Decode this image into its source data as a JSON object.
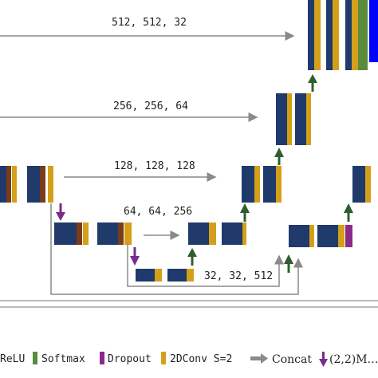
{
  "labels": {
    "level1": "512, 512, 32",
    "level2": "256, 256, 64",
    "level3": "128, 128, 128",
    "level4": "64, 64, 256",
    "level5": "32, 32, 512"
  },
  "legend": {
    "relu": "ReLU",
    "softmax": "Softmax",
    "dropout": "Dropout",
    "conv": "2DConv S=2",
    "concat": "Concat",
    "maxpool": "(2,2)M…"
  },
  "colors": {
    "conv_block": "#1f3a6b",
    "relu": "#5a8a3c",
    "softmax": "#5a8a3c",
    "dropout": "#8b2a8b",
    "stride_conv": "#d4a01a",
    "batchnorm": "#7a3b1a",
    "output": "#0000ff",
    "arrow_gray": "#8a8a8a",
    "arrow_green": "#2e5e2e",
    "arrow_purple": "#7a2a8a"
  }
}
